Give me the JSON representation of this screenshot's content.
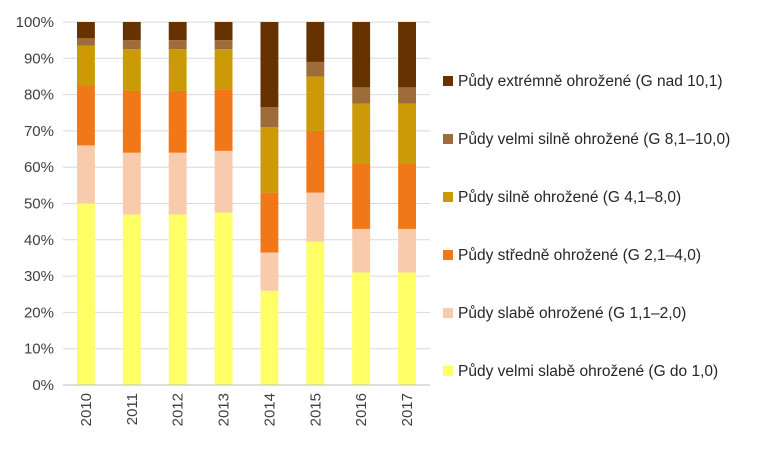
{
  "chart_data": {
    "type": "bar",
    "stacked": true,
    "percent": true,
    "categories": [
      "2010",
      "2011",
      "2012",
      "2013",
      "2014",
      "2015",
      "2016",
      "2017"
    ],
    "ylim": [
      0,
      100
    ],
    "yticks": [
      "0%",
      "10%",
      "20%",
      "30%",
      "40%",
      "50%",
      "60%",
      "70%",
      "80%",
      "90%",
      "100%"
    ],
    "grid": true,
    "legend_position": "right",
    "series": [
      {
        "name": "Půdy velmi slabě ohrožené (G do 1,0)",
        "color": "#FFFF66",
        "values": [
          50,
          47,
          47,
          47.5,
          26,
          39.5,
          31,
          31
        ]
      },
      {
        "name": "Půdy slabě ohrožené (G 1,1–2,0)",
        "color": "#F8CBAD",
        "values": [
          16,
          17,
          17,
          17,
          10.5,
          13.5,
          12,
          12
        ]
      },
      {
        "name": "Půdy středně ohrožené (G 2,1–4,0)",
        "color": "#F07818",
        "values": [
          16.5,
          17,
          17,
          17,
          16.5,
          17,
          18,
          18
        ]
      },
      {
        "name": "Půdy silně ohrožené (G 4,1–8,0)",
        "color": "#CC9A06",
        "values": [
          11,
          11.5,
          11.5,
          11,
          18,
          15,
          16.5,
          16.5
        ]
      },
      {
        "name": "Půdy velmi silně ohrožené (G 8,1–10,0)",
        "color": "#9E6B3A",
        "values": [
          2,
          2.5,
          2.5,
          2.5,
          5.5,
          4,
          4.5,
          4.5
        ]
      },
      {
        "name": "Půdy extrémně ohrožené (G nad 10,1)",
        "color": "#663300",
        "values": [
          4.5,
          5,
          5,
          5,
          23.5,
          11,
          18,
          18
        ]
      }
    ]
  }
}
